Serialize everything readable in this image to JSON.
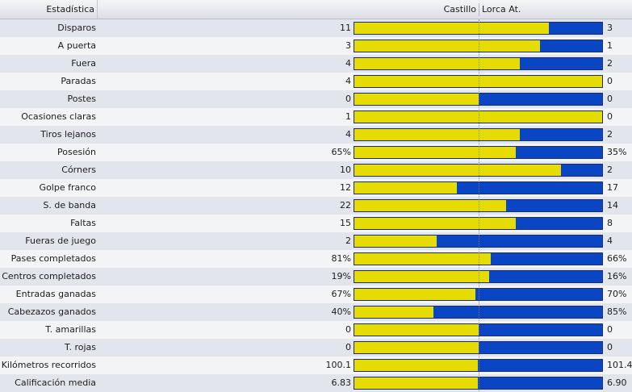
{
  "header": {
    "stat_label": "Estadística",
    "home_team": "Castillo",
    "away_team": "Lorca At."
  },
  "colors": {
    "home": "#e6dc05",
    "away": "#0a45c4"
  },
  "rows": [
    {
      "label": "Disparos",
      "home": "11",
      "away": "3",
      "home_share": 0.786
    },
    {
      "label": "A puerta",
      "home": "3",
      "away": "1",
      "home_share": 0.75
    },
    {
      "label": "Fuera",
      "home": "4",
      "away": "2",
      "home_share": 0.667
    },
    {
      "label": "Paradas",
      "home": "4",
      "away": "0",
      "home_share": 1.0
    },
    {
      "label": "Postes",
      "home": "0",
      "away": "0",
      "home_share": 0.5
    },
    {
      "label": "Ocasiones claras",
      "home": "1",
      "away": "0",
      "home_share": 1.0
    },
    {
      "label": "Tiros lejanos",
      "home": "4",
      "away": "2",
      "home_share": 0.667
    },
    {
      "label": "Posesión",
      "home": "65%",
      "away": "35%",
      "home_share": 0.65
    },
    {
      "label": "Córners",
      "home": "10",
      "away": "2",
      "home_share": 0.833
    },
    {
      "label": "Golpe franco",
      "home": "12",
      "away": "17",
      "home_share": 0.414
    },
    {
      "label": "S. de banda",
      "home": "22",
      "away": "14",
      "home_share": 0.611
    },
    {
      "label": "Faltas",
      "home": "15",
      "away": "8",
      "home_share": 0.652
    },
    {
      "label": "Fueras de juego",
      "home": "2",
      "away": "4",
      "home_share": 0.333
    },
    {
      "label": "Pases completados",
      "home": "81%",
      "away": "66%",
      "home_share": 0.551
    },
    {
      "label": "Centros completados",
      "home": "19%",
      "away": "16%",
      "home_share": 0.543
    },
    {
      "label": "Entradas ganadas",
      "home": "67%",
      "away": "70%",
      "home_share": 0.489
    },
    {
      "label": "Cabezazos ganados",
      "home": "40%",
      "away": "85%",
      "home_share": 0.32
    },
    {
      "label": "T. amarillas",
      "home": "0",
      "away": "0",
      "home_share": 0.5
    },
    {
      "label": "T. rojas",
      "home": "0",
      "away": "0",
      "home_share": 0.5
    },
    {
      "label": "Kilómetros recorridos",
      "home": "100.1",
      "away": "101.4",
      "home_share": 0.497
    },
    {
      "label": "Calificación media",
      "home": "6.83",
      "away": "6.90",
      "home_share": 0.497
    }
  ]
}
